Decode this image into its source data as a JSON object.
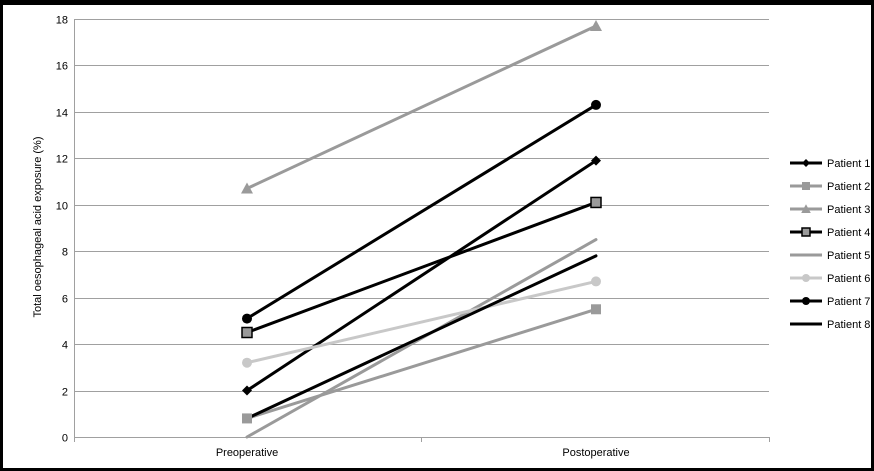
{
  "chart_data": {
    "type": "line",
    "title": "",
    "xlabel": "",
    "ylabel": "Total oesophageal acid exposure (%)",
    "categories": [
      "Preoperative",
      "Postoperative"
    ],
    "ylim": [
      0,
      18
    ],
    "yticks": [
      0,
      2,
      4,
      6,
      8,
      10,
      12,
      14,
      16,
      18
    ],
    "grid": true,
    "legend_position": "right",
    "series": [
      {
        "name": "Patient 1",
        "values": [
          2.0,
          11.9
        ],
        "color": "#000000",
        "marker": "diamond"
      },
      {
        "name": "Patient 2",
        "values": [
          0.8,
          5.5
        ],
        "color": "#9a9a9a",
        "marker": "square"
      },
      {
        "name": "Patient 3",
        "values": [
          10.7,
          17.7
        ],
        "color": "#9a9a9a",
        "marker": "triangle"
      },
      {
        "name": "Patient 4",
        "values": [
          4.5,
          10.1
        ],
        "color": "#000000",
        "marker": "square-gray"
      },
      {
        "name": "Patient 5",
        "values": [
          0.0,
          8.5
        ],
        "color": "#9a9a9a",
        "marker": "none"
      },
      {
        "name": "Patient 6",
        "values": [
          3.2,
          6.7
        ],
        "color": "#c8c8c8",
        "marker": "circle"
      },
      {
        "name": "Patient 7",
        "values": [
          5.1,
          14.3
        ],
        "color": "#000000",
        "marker": "circle"
      },
      {
        "name": "Patient 8",
        "values": [
          0.8,
          7.8
        ],
        "color": "#000000",
        "marker": "none"
      }
    ]
  }
}
